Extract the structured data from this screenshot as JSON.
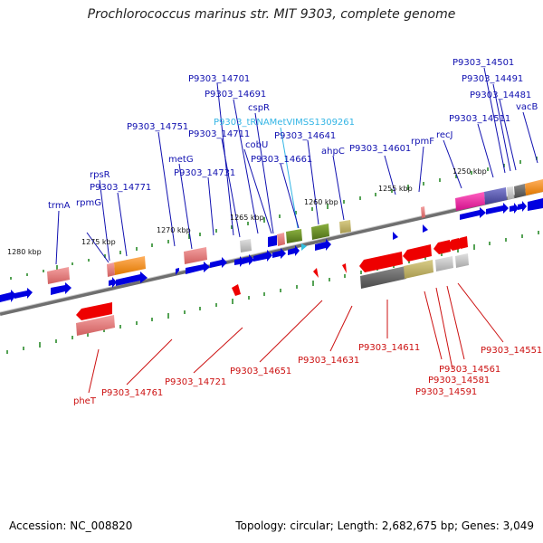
{
  "title": "Prochlorococcus marinus str. MIT 9303, complete genome",
  "footer": {
    "accession": "Accession: NC_008820",
    "summary": "Topology: circular; Length: 2,682,675 bp; Genes: 3,049"
  },
  "scale_labels": [
    "1280 kbp",
    "1275 kbp",
    "1270 kbp",
    "1265 kbp",
    "1260 kbp",
    "1255 kbp",
    "1250 kbp"
  ],
  "upper_gene_labels": [
    "trmA",
    "rpmG",
    "rpsR",
    "P9303_14771",
    "P9303_14751",
    "metG",
    "P9303_14731",
    "P9303_14711",
    "P9303_14701",
    "P9303_14691",
    "cobU",
    "cspR",
    "P9303_tRNAMetVIMSS1309261",
    "P9303_14661",
    "P9303_14641",
    "ahpC",
    "P9303_14601",
    "rpmF",
    "recJ",
    "P9303_14511",
    "P9303_14501",
    "P9303_14491",
    "P9303_14481",
    "vacB"
  ],
  "lower_gene_labels": [
    "pheT",
    "P9303_14761",
    "P9303_14721",
    "P9303_14651",
    "P9303_14631",
    "P9303_14611",
    "P9303_14561",
    "P9303_14581",
    "P9303_14591",
    "P9303_14551"
  ],
  "colors": {
    "backbone": "#707070",
    "forward_gene": "#0000e0",
    "reverse_gene": "#ee0000",
    "label_blue": "#1010b0",
    "label_red": "#cc1010",
    "label_trna": "#33b5e5",
    "tick": "#2a8a2a"
  }
}
